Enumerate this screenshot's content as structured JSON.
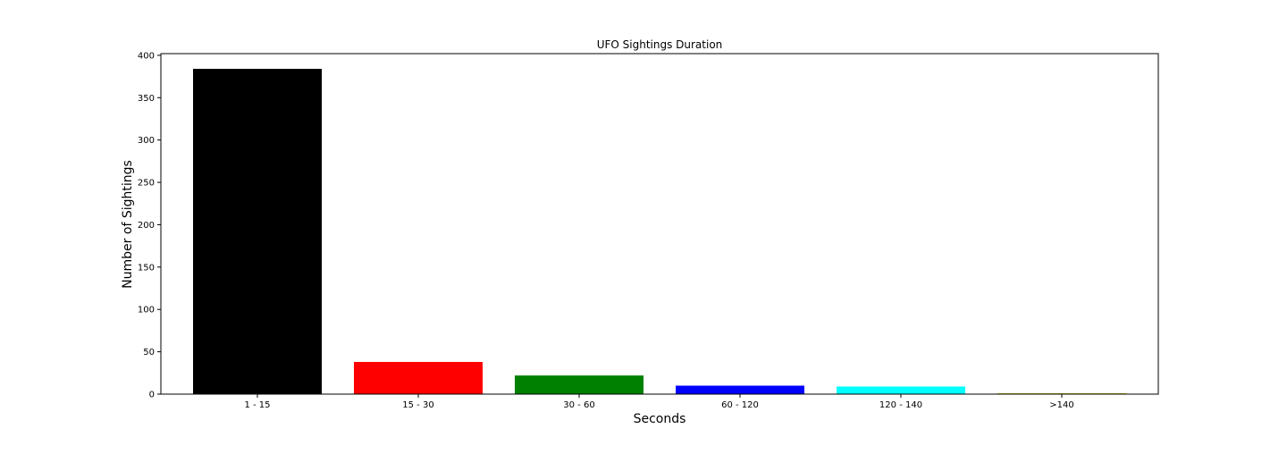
{
  "chart_data": {
    "type": "bar",
    "title": "UFO Sightings Duration",
    "xlabel": "Seconds",
    "ylabel": "Number of Sightings",
    "categories": [
      "1 - 15",
      "15 - 30",
      "30 - 60",
      "60 - 120",
      "120 - 140",
      ">140"
    ],
    "values": [
      384,
      38,
      22,
      10,
      9,
      1
    ],
    "colors": [
      "#000000",
      "#ff0000",
      "#008000",
      "#0000ff",
      "#00ffff",
      "#bfbf00"
    ],
    "ylim": [
      0,
      402
    ],
    "yticks": [
      0,
      50,
      100,
      150,
      200,
      250,
      300,
      350,
      400
    ],
    "grid": false,
    "legend": "none"
  }
}
